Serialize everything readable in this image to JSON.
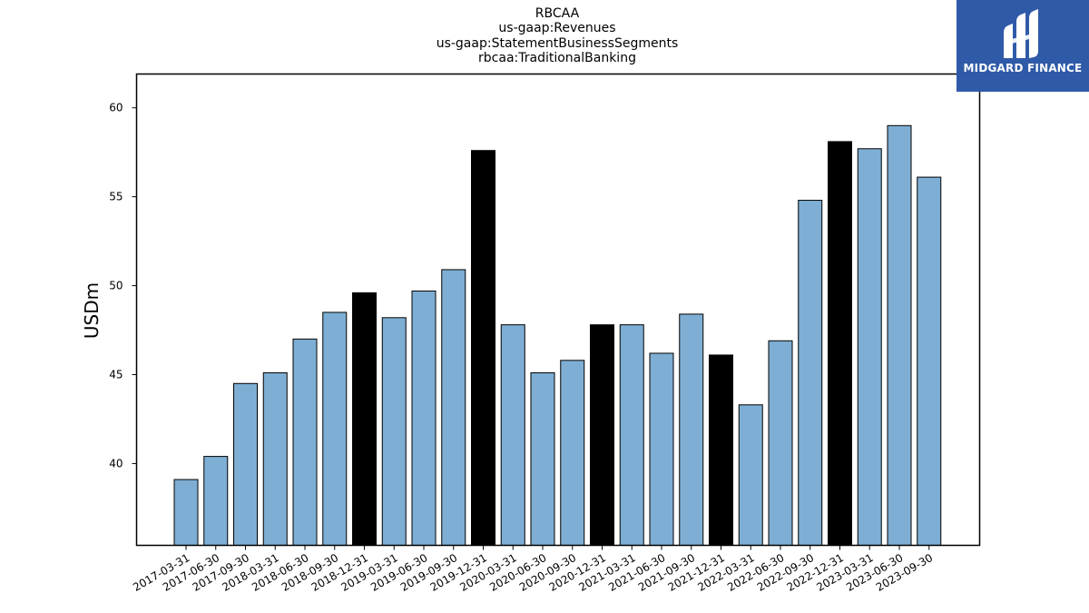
{
  "chart_data": {
    "type": "bar",
    "title": [
      "RBCAA",
      "us-gaap:Revenues",
      "us-gaap:StatementBusinessSegments",
      "rbcaa:TraditionalBanking"
    ],
    "xlabel": "",
    "ylabel": "USDm",
    "ylim": [
      35.4,
      61.9
    ],
    "yticks": [
      40,
      45,
      50,
      55,
      60
    ],
    "categories": [
      "2017-03-31",
      "2017-06-30",
      "2017-09-30",
      "2018-03-31",
      "2018-06-30",
      "2018-09-30",
      "2018-12-31",
      "2019-03-31",
      "2019-06-30",
      "2019-09-30",
      "2019-12-31",
      "2020-03-31",
      "2020-06-30",
      "2020-09-30",
      "2020-12-31",
      "2021-03-31",
      "2021-06-30",
      "2021-09-30",
      "2021-12-31",
      "2022-03-31",
      "2022-06-30",
      "2022-09-30",
      "2022-12-31",
      "2023-03-31",
      "2023-06-30",
      "2023-09-30"
    ],
    "values": [
      39.1,
      40.4,
      44.5,
      45.1,
      47.0,
      48.5,
      49.6,
      48.2,
      49.7,
      50.9,
      57.6,
      47.8,
      45.1,
      45.8,
      47.8,
      47.8,
      46.2,
      48.4,
      46.1,
      43.3,
      46.9,
      54.8,
      58.1,
      57.7,
      59.0,
      56.1
    ],
    "highlight": [
      false,
      false,
      false,
      false,
      false,
      false,
      true,
      false,
      false,
      false,
      true,
      false,
      false,
      false,
      true,
      false,
      false,
      false,
      true,
      false,
      false,
      false,
      true,
      false,
      false,
      false
    ],
    "colors": {
      "bar": "#7eaed3",
      "highlight": "#000000",
      "edge": "#000000"
    },
    "grid": false,
    "legend": "none"
  },
  "logo": {
    "text": "MIDGARD FINANCE",
    "background": "#2f5aa8"
  }
}
